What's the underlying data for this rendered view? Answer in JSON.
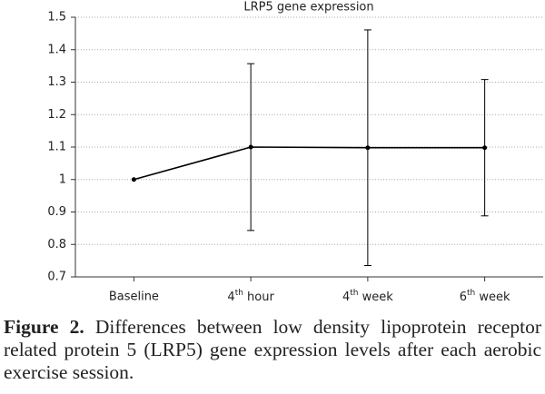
{
  "chart_data": {
    "type": "line",
    "title": "LRP5 gene expression",
    "categories": [
      "Baseline",
      "4th hour",
      "4th week",
      "6th week"
    ],
    "values": [
      1,
      1.1,
      1.098,
      1.098
    ],
    "errors": [
      null,
      0.257,
      0.363,
      0.21
    ],
    "color": "#000000",
    "ylim": [
      0.7,
      1.5
    ],
    "yticks": [
      0.7,
      0.8,
      0.9,
      1,
      1.1,
      1.2,
      1.3,
      1.4,
      1.5
    ],
    "grid": true
  },
  "caption": {
    "label": "Figure 2.",
    "text": "Differences between low density lipoprotein receptor related protein 5 (LRP5) gene expression levels after each aerobic exercise session."
  }
}
